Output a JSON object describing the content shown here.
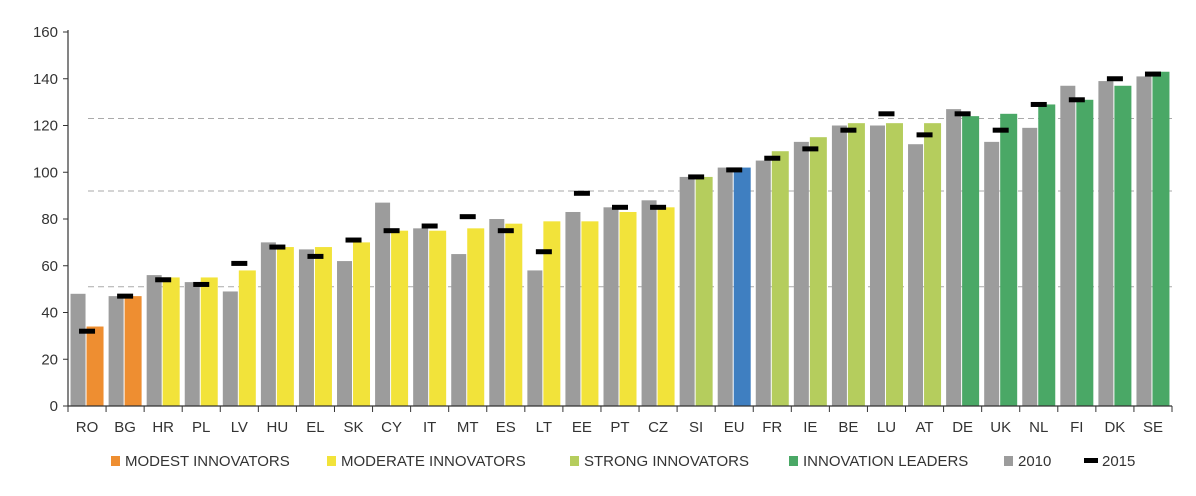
{
  "chart_data": {
    "type": "bar",
    "categories": [
      "RO",
      "BG",
      "HR",
      "PL",
      "LV",
      "HU",
      "EL",
      "SK",
      "CY",
      "IT",
      "MT",
      "ES",
      "LT",
      "EE",
      "PT",
      "CZ",
      "SI",
      "EU",
      "FR",
      "IE",
      "BE",
      "LU",
      "AT",
      "DE",
      "UK",
      "NL",
      "FI",
      "DK",
      "SE"
    ],
    "groups": [
      "modest",
      "modest",
      "moderate",
      "moderate",
      "moderate",
      "moderate",
      "moderate",
      "moderate",
      "moderate",
      "moderate",
      "moderate",
      "moderate",
      "moderate",
      "moderate",
      "moderate",
      "moderate",
      "strong",
      "eu",
      "strong",
      "strong",
      "strong",
      "strong",
      "strong",
      "leader",
      "leader",
      "leader",
      "leader",
      "leader",
      "leader"
    ],
    "series": [
      {
        "name": "2010",
        "kind": "bar",
        "values": [
          48,
          47,
          56,
          53,
          49,
          70,
          67,
          62,
          87,
          76,
          65,
          80,
          58,
          83,
          85,
          88,
          98,
          102,
          105,
          113,
          120,
          120,
          112,
          127,
          113,
          119,
          137,
          139,
          141
        ]
      },
      {
        "name": "current",
        "kind": "bar",
        "values": [
          34,
          47,
          55,
          55,
          58,
          68,
          68,
          70,
          75,
          75,
          76,
          78,
          79,
          79,
          83,
          85,
          98,
          102,
          109,
          115,
          121,
          121,
          121,
          124,
          125,
          129,
          131,
          137,
          143
        ]
      },
      {
        "name": "2015",
        "kind": "marker",
        "values": [
          32,
          47,
          54,
          52,
          61,
          68,
          64,
          71,
          75,
          77,
          81,
          75,
          66,
          91,
          85,
          85,
          98,
          101,
          106,
          110,
          118,
          125,
          116,
          125,
          118,
          129,
          131,
          140,
          142
        ]
      }
    ],
    "reference_lines": [
      51,
      92,
      123
    ],
    "y_ticks": [
      0,
      20,
      40,
      60,
      80,
      100,
      120,
      140,
      160
    ],
    "ylim": [
      0,
      160
    ],
    "colors": {
      "modest": "#ee8e31",
      "moderate": "#f2e33a",
      "strong": "#b5cd5d",
      "leader": "#4aa866",
      "eu": "#3f7fc1",
      "bar2010": "#9c9c9c",
      "marker2015": "#000000",
      "reference": "#aaaaaa",
      "axis": "#333333"
    },
    "legend": [
      {
        "label": "MODEST INNOVATORS",
        "color_key": "modest",
        "kind": "square"
      },
      {
        "label": "MODERATE INNOVATORS",
        "color_key": "moderate",
        "kind": "square"
      },
      {
        "label": "STRONG INNOVATORS",
        "color_key": "strong",
        "kind": "square"
      },
      {
        "label": "INNOVATION LEADERS",
        "color_key": "leader",
        "kind": "square"
      },
      {
        "label": "2010",
        "color_key": "bar2010",
        "kind": "square"
      },
      {
        "label": "2015",
        "color_key": "marker2015",
        "kind": "dash"
      }
    ],
    "legend_position": "bottom",
    "grid": false
  }
}
